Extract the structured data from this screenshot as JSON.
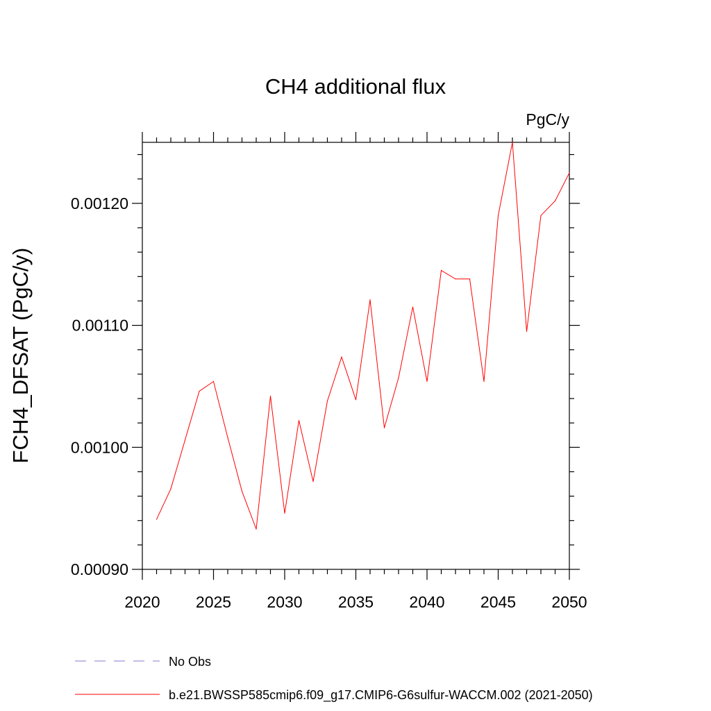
{
  "chart_data": {
    "type": "line",
    "title": "CH4 additional flux",
    "units": "PgC/y",
    "ylabel": "FCH4_DFSAT  (PgC/y)",
    "xlabel": "",
    "xlim": [
      2020,
      2050
    ],
    "ylim": [
      0.0009,
      0.00125
    ],
    "x_ticks": [
      2020,
      2025,
      2030,
      2035,
      2040,
      2045,
      2050
    ],
    "x_tick_labels": [
      "2020",
      "2025",
      "2030",
      "2035",
      "2040",
      "2045",
      "2050"
    ],
    "y_ticks": [
      0.0009,
      0.001,
      0.0011,
      0.0012
    ],
    "y_tick_labels": [
      "0.00090",
      "0.00100",
      "0.00110",
      "0.00120"
    ],
    "grid": false,
    "legend_placement": "bottom",
    "series": [
      {
        "name": "b.e21.BWSSP585cmip6.f09_g17.CMIP6-G6sulfur-WACCM.002 (2021-2050)",
        "color": "#ff0000",
        "x": [
          2021,
          2022,
          2023,
          2024,
          2025,
          2026,
          2027,
          2028,
          2029,
          2030,
          2031,
          2032,
          2033,
          2034,
          2035,
          2036,
          2037,
          2038,
          2039,
          2040,
          2041,
          2042,
          2043,
          2044,
          2045,
          2046,
          2047,
          2048,
          2049,
          2050
        ],
        "values": [
          0.000941,
          0.000966,
          0.001006,
          0.001046,
          0.001054,
          0.001008,
          0.000964,
          0.000933,
          0.001042,
          0.000946,
          0.001022,
          0.000972,
          0.001038,
          0.001074,
          0.001039,
          0.001121,
          0.001016,
          0.001057,
          0.001115,
          0.001054,
          0.001145,
          0.001138,
          0.001138,
          0.001054,
          0.00119,
          0.00125,
          0.001095,
          0.00119,
          0.001202,
          0.001225
        ]
      }
    ],
    "legend": [
      {
        "label": "No Obs",
        "color": "#8877cc",
        "style": "dashed"
      },
      {
        "label": "b.e21.BWSSP585cmip6.f09_g17.CMIP6-G6sulfur-WACCM.002 (2021-2050)",
        "color": "#ff0000",
        "style": "solid"
      }
    ]
  }
}
